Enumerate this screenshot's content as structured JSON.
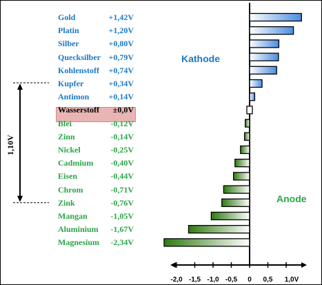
{
  "chart_data": {
    "type": "bar",
    "orientation": "horizontal",
    "x_unit": "V",
    "x_ticks": [
      "-2,0",
      "-1,5",
      "-1,0",
      "-0,5",
      "0",
      "0,5",
      "1,0V"
    ],
    "xlim": [
      -2.2,
      1.35
    ],
    "region_labels": {
      "cathode": "Kathode",
      "anode": "Anode"
    },
    "reference_difference": {
      "label": "1,10V",
      "from": "Kupfer",
      "to": "Zink"
    },
    "highlighted": "Wasserstoff",
    "colors": {
      "positive": "#4a8ee0",
      "negative": "#2f7a12",
      "cathode_text": "#1a79c6",
      "anode_text": "#2ba446",
      "highlight": "#e9b4b4"
    },
    "entries": [
      {
        "name": "Gold",
        "label": "+1,42V",
        "value": 1.42
      },
      {
        "name": "Platin",
        "label": "+1,20V",
        "value": 1.2
      },
      {
        "name": "Silber",
        "label": "+0,80V",
        "value": 0.8
      },
      {
        "name": "Quecksilber",
        "label": "+0,79V",
        "value": 0.79
      },
      {
        "name": "Kohlenstoff",
        "label": "+0,74V",
        "value": 0.74
      },
      {
        "name": "Kupfer",
        "label": "+0,34V",
        "value": 0.34
      },
      {
        "name": "Antimon",
        "label": "+0,14V",
        "value": 0.14
      },
      {
        "name": "Wasserstoff",
        "label": "±0,0V",
        "value": 0.0
      },
      {
        "name": "Blei",
        "label": "-0,12V",
        "value": -0.12
      },
      {
        "name": "Zinn",
        "label": "-0,14V",
        "value": -0.14
      },
      {
        "name": "Nickel",
        "label": "-0,25V",
        "value": -0.25
      },
      {
        "name": "Cadmium",
        "label": "-0,40V",
        "value": -0.4
      },
      {
        "name": "Eisen",
        "label": "-0,44V",
        "value": -0.44
      },
      {
        "name": "Chrom",
        "label": "-0,71V",
        "value": -0.71
      },
      {
        "name": "Zink",
        "label": "-0,76V",
        "value": -0.76
      },
      {
        "name": "Mangan",
        "label": "-1,05V",
        "value": -1.05
      },
      {
        "name": "Aluminium",
        "label": "-1,67V",
        "value": -1.67
      },
      {
        "name": "Magnesium",
        "label": "-2,34V",
        "value": -2.34
      }
    ]
  }
}
